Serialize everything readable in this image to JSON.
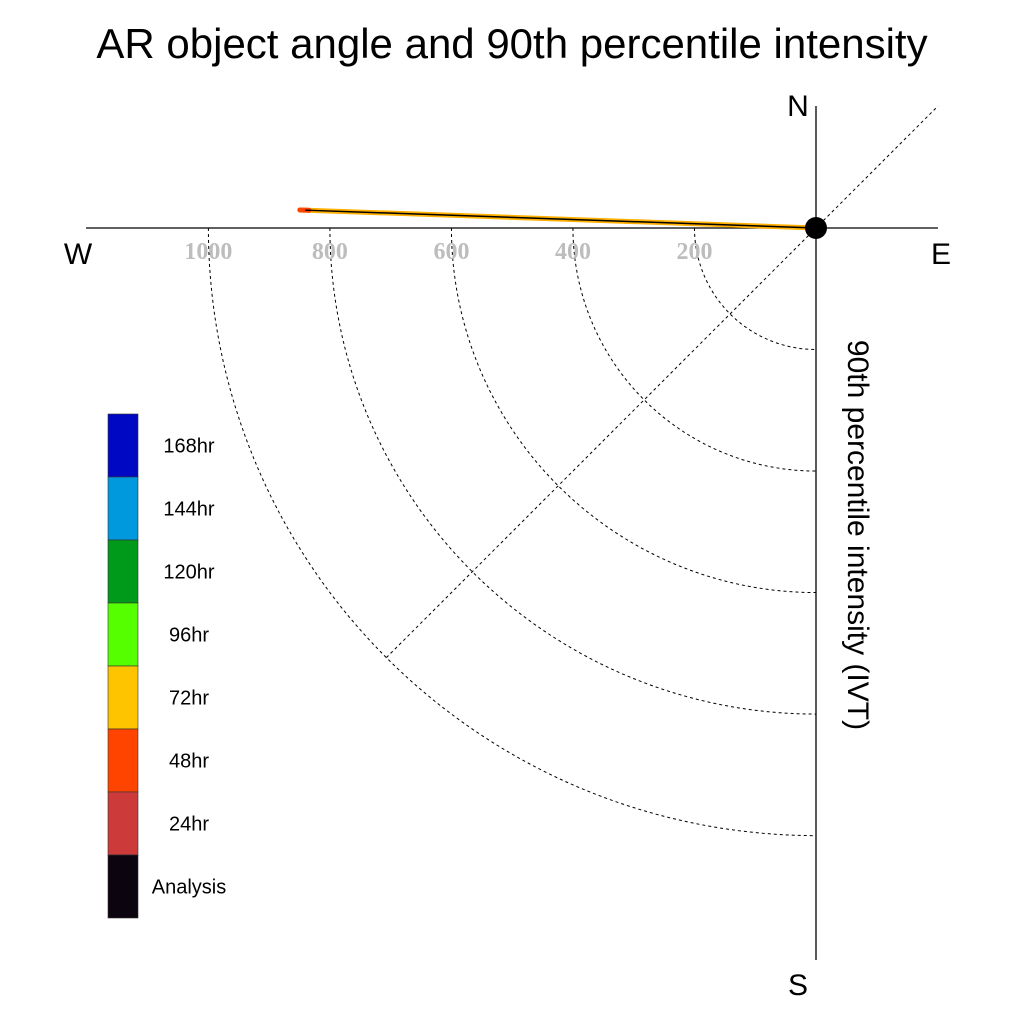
{
  "chart_data": {
    "type": "polar-trajectory",
    "title": "AR object angle and 90th percentile intensity",
    "radial_axis_label": "90th percentile intensity (IVT)",
    "compass": {
      "north": "N",
      "south": "S",
      "east": "E",
      "west": "W"
    },
    "radial_ticks": [
      1000,
      800,
      600,
      400,
      200
    ],
    "rlim": [
      0,
      1000
    ],
    "grid": true,
    "legend_placement": "left",
    "legend": [
      {
        "label": "168hr",
        "color": "#0008C4"
      },
      {
        "label": "144hr",
        "color": "#0099DD"
      },
      {
        "label": "120hr",
        "color": "#009A1A"
      },
      {
        "label": "96hr",
        "color": "#55FF00"
      },
      {
        "label": "72hr",
        "color": "#FFC400"
      },
      {
        "label": "48hr",
        "color": "#FF4400"
      },
      {
        "label": "24hr",
        "color": "#CC3A3A"
      },
      {
        "label": "Analysis",
        "color": "#0C0510"
      }
    ],
    "series": [
      {
        "name": "72hr",
        "color": "#FFB000",
        "points": [
          {
            "bearing_deg": 272,
            "intensity": 850
          },
          {
            "bearing_deg": 270,
            "intensity": 0
          }
        ]
      },
      {
        "name": "48hr",
        "color": "#FF4400",
        "points": [
          {
            "bearing_deg": 272,
            "intensity": 850
          },
          {
            "bearing_deg": 272,
            "intensity": 835
          }
        ]
      },
      {
        "name": "Analysis",
        "color": "#000000",
        "points": [
          {
            "bearing_deg": 272,
            "intensity": 840
          },
          {
            "bearing_deg": 270,
            "intensity": 0
          }
        ]
      }
    ],
    "origin_marker": {
      "intensity": 0
    }
  }
}
